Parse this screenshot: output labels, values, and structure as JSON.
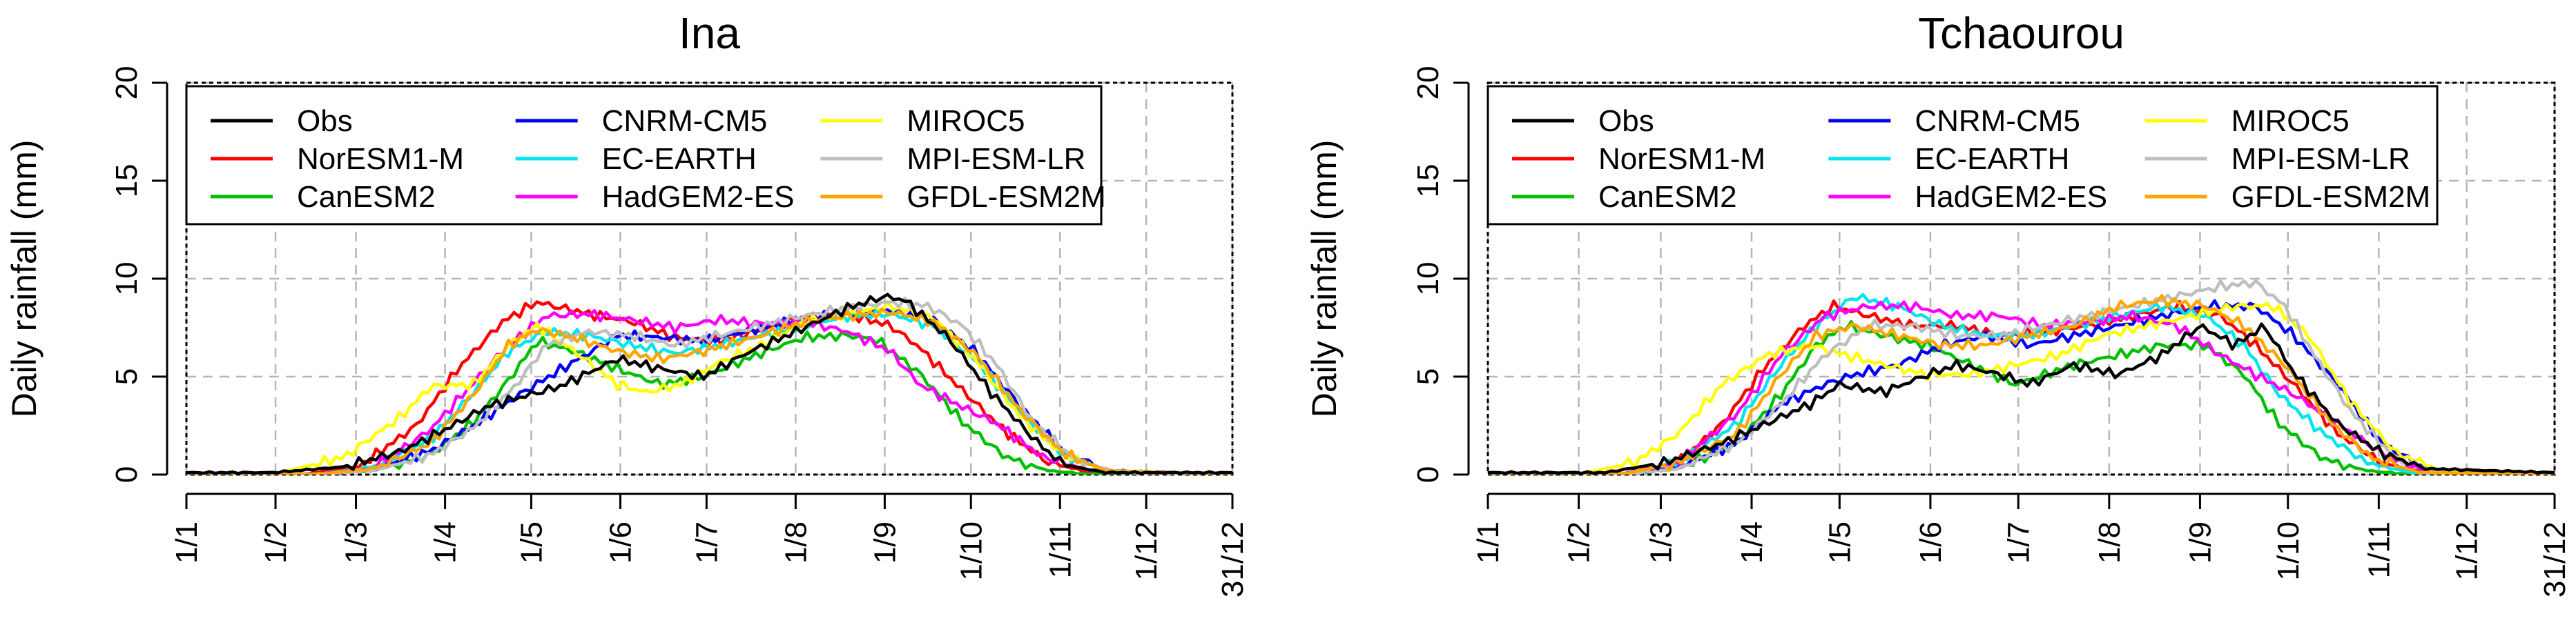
{
  "chart_data": [
    {
      "type": "line",
      "title": "Ina",
      "ylabel": "Daily rainfall (mm)",
      "xlabel": "",
      "ylim": [
        0,
        20
      ],
      "yticks": [
        0,
        5,
        10,
        15,
        20
      ],
      "xlim": [
        0,
        364
      ],
      "xtick_labels": [
        "1/1",
        "1/2",
        "1/3",
        "1/4",
        "1/5",
        "1/6",
        "1/7",
        "1/8",
        "1/9",
        "1/10",
        "1/11",
        "1/12",
        "31/12"
      ],
      "xtick_days": [
        0,
        31,
        59,
        90,
        120,
        151,
        181,
        212,
        243,
        273,
        304,
        334,
        364
      ],
      "grid": true,
      "legend_position": "top",
      "series": [
        {
          "name": "Obs",
          "color": "#000000",
          "x": [
            0,
            30,
            55,
            75,
            90,
            105,
            120,
            130,
            150,
            165,
            180,
            195,
            212,
            230,
            243,
            250,
            265,
            280,
            295,
            305,
            320,
            364
          ],
          "y": [
            0.1,
            0.1,
            0.4,
            1.2,
            2.3,
            3.5,
            4.1,
            4.5,
            5.9,
            5.4,
            5.0,
            6.2,
            7.3,
            8.5,
            9.1,
            8.9,
            7.0,
            4.2,
            1.8,
            0.5,
            0.1,
            0.1
          ]
        },
        {
          "name": "NorESM1-M",
          "color": "#ff0000",
          "x": [
            0,
            40,
            60,
            80,
            95,
            110,
            122,
            128,
            140,
            155,
            170,
            185,
            200,
            215,
            230,
            245,
            255,
            270,
            285,
            300,
            315,
            364
          ],
          "y": [
            0,
            0,
            0.4,
            2.5,
            5.5,
            7.8,
            8.8,
            8.6,
            8.2,
            7.8,
            7.0,
            6.8,
            7.4,
            8.0,
            8.2,
            7.6,
            6.5,
            4.3,
            2.2,
            0.6,
            0.1,
            0
          ]
        },
        {
          "name": "CanESM2",
          "color": "#00c000",
          "x": [
            0,
            45,
            65,
            85,
            100,
            112,
            122,
            135,
            150,
            165,
            180,
            200,
            215,
            230,
            240,
            255,
            270,
            285,
            300,
            315,
            364
          ],
          "y": [
            0,
            0,
            0.2,
            1.0,
            2.7,
            4.8,
            6.8,
            6.3,
            5.4,
            4.6,
            5.0,
            6.2,
            7.0,
            7.1,
            6.9,
            5.2,
            2.7,
            0.9,
            0.2,
            0,
            0
          ]
        },
        {
          "name": "CNRM-CM5",
          "color": "#0000ff",
          "x": [
            0,
            45,
            65,
            85,
            100,
            115,
            125,
            140,
            150,
            165,
            180,
            200,
            215,
            230,
            245,
            260,
            275,
            290,
            305,
            320,
            364
          ],
          "y": [
            0,
            0,
            0.3,
            1.2,
            2.5,
            4.0,
            4.9,
            6.2,
            7.1,
            7.0,
            6.8,
            7.5,
            8.0,
            8.2,
            8.4,
            7.9,
            6.2,
            3.5,
            1.2,
            0.2,
            0
          ]
        },
        {
          "name": "EC-EARTH",
          "color": "#00e5ee",
          "x": [
            0,
            45,
            65,
            85,
            100,
            112,
            125,
            140,
            155,
            170,
            185,
            200,
            215,
            230,
            245,
            260,
            275,
            290,
            305,
            320,
            364
          ],
          "y": [
            0,
            0,
            0.4,
            1.8,
            4.2,
            6.3,
            7.3,
            7.1,
            6.6,
            6.2,
            6.6,
            7.1,
            7.6,
            8.1,
            8.2,
            7.6,
            5.8,
            3.2,
            1.0,
            0.2,
            0
          ]
        },
        {
          "name": "HadGEM2-ES",
          "color": "#ff00ff",
          "x": [
            0,
            45,
            65,
            85,
            100,
            112,
            125,
            140,
            155,
            170,
            185,
            200,
            215,
            230,
            245,
            255,
            268,
            282,
            298,
            315,
            364
          ],
          "y": [
            0,
            0,
            0.3,
            2.3,
            4.7,
            6.6,
            8.1,
            8.2,
            7.9,
            7.5,
            7.9,
            7.7,
            7.8,
            7.3,
            6.3,
            4.6,
            3.6,
            2.6,
            0.9,
            0.2,
            0
          ]
        },
        {
          "name": "MIROC5",
          "color": "#ffff00",
          "x": [
            0,
            30,
            55,
            75,
            85,
            100,
            112,
            122,
            135,
            150,
            160,
            172,
            185,
            200,
            215,
            230,
            245,
            260,
            275,
            290,
            305,
            320,
            364
          ],
          "y": [
            0,
            0,
            0.9,
            3.0,
            4.5,
            4.6,
            6.6,
            7.6,
            6.3,
            4.6,
            4.2,
            4.6,
            5.7,
            6.6,
            7.8,
            8.2,
            8.6,
            8.0,
            5.8,
            3.0,
            1.0,
            0.2,
            0
          ]
        },
        {
          "name": "MPI-ESM-LR",
          "color": "#bebebe",
          "x": [
            0,
            45,
            65,
            85,
            100,
            115,
            125,
            140,
            155,
            170,
            185,
            200,
            215,
            230,
            245,
            258,
            270,
            282,
            295,
            310,
            325,
            364
          ],
          "y": [
            0,
            0,
            0.2,
            1.0,
            2.4,
            4.6,
            6.6,
            7.3,
            7.1,
            6.6,
            7.1,
            7.6,
            8.1,
            8.5,
            8.8,
            8.6,
            7.6,
            5.6,
            2.6,
            0.7,
            0.1,
            0
          ]
        },
        {
          "name": "GFDL-ESM2M",
          "color": "#ffa500",
          "x": [
            0,
            45,
            65,
            85,
            100,
            112,
            122,
            135,
            150,
            165,
            180,
            200,
            215,
            230,
            245,
            260,
            275,
            290,
            305,
            320,
            364
          ],
          "y": [
            0,
            0,
            0.3,
            1.6,
            4.1,
            6.6,
            7.4,
            7.0,
            6.3,
            5.9,
            6.3,
            7.1,
            7.8,
            8.1,
            8.3,
            7.8,
            6.1,
            3.3,
            1.1,
            0.2,
            0
          ]
        }
      ]
    },
    {
      "type": "line",
      "title": "Tchaourou",
      "ylabel": "Daily rainfall (mm)",
      "xlabel": "",
      "ylim": [
        0,
        20
      ],
      "yticks": [
        0,
        5,
        10,
        15,
        20
      ],
      "xlim": [
        0,
        364
      ],
      "xtick_labels": [
        "1/1",
        "1/2",
        "1/3",
        "1/4",
        "1/5",
        "1/6",
        "1/7",
        "1/8",
        "1/9",
        "1/10",
        "1/11",
        "1/12",
        "31/12"
      ],
      "xtick_days": [
        0,
        31,
        59,
        90,
        120,
        151,
        181,
        212,
        243,
        273,
        304,
        334,
        364
      ],
      "grid": true,
      "legend_position": "top",
      "series": [
        {
          "name": "Obs",
          "color": "#000000",
          "x": [
            0,
            40,
            60,
            80,
            95,
            110,
            120,
            135,
            150,
            160,
            175,
            185,
            200,
            215,
            230,
            243,
            255,
            265,
            275,
            290,
            305,
            320,
            364
          ],
          "y": [
            0.1,
            0.1,
            0.6,
            1.6,
            2.6,
            3.6,
            4.6,
            4.2,
            5.1,
            5.6,
            5.1,
            4.6,
            5.6,
            5.1,
            6.1,
            7.6,
            6.6,
            7.6,
            5.2,
            2.6,
            1.1,
            0.3,
            0.1
          ]
        },
        {
          "name": "NorESM1-M",
          "color": "#ff0000",
          "x": [
            0,
            45,
            65,
            80,
            95,
            108,
            118,
            130,
            145,
            160,
            175,
            190,
            205,
            220,
            235,
            250,
            262,
            275,
            290,
            305,
            320,
            364
          ],
          "y": [
            0,
            0,
            0.6,
            2.6,
            5.6,
            7.6,
            8.6,
            8.1,
            7.6,
            7.6,
            7.1,
            7.3,
            7.6,
            8.1,
            8.6,
            8.1,
            6.6,
            4.6,
            2.1,
            0.6,
            0.1,
            0
          ]
        },
        {
          "name": "CanESM2",
          "color": "#00c000",
          "x": [
            0,
            45,
            65,
            85,
            100,
            112,
            122,
            135,
            150,
            165,
            180,
            200,
            215,
            230,
            245,
            258,
            270,
            285,
            300,
            315,
            364
          ],
          "y": [
            0,
            0,
            0.3,
            1.6,
            4.1,
            6.6,
            7.6,
            7.1,
            6.6,
            5.6,
            4.6,
            5.6,
            6.1,
            6.6,
            6.6,
            5.1,
            2.6,
            0.8,
            0.2,
            0,
            0
          ]
        },
        {
          "name": "CNRM-CM5",
          "color": "#0000ff",
          "x": [
            0,
            45,
            65,
            85,
            100,
            115,
            125,
            140,
            155,
            170,
            185,
            200,
            215,
            230,
            245,
            262,
            275,
            290,
            305,
            320,
            364
          ],
          "y": [
            0,
            0,
            0.4,
            1.6,
            3.6,
            4.6,
            5.1,
            5.6,
            6.6,
            7.1,
            6.6,
            7.1,
            7.6,
            8.1,
            8.6,
            8.6,
            7.1,
            4.6,
            1.6,
            0.3,
            0
          ]
        },
        {
          "name": "EC-EARTH",
          "color": "#00e5ee",
          "x": [
            0,
            45,
            65,
            85,
            100,
            112,
            125,
            140,
            155,
            170,
            185,
            200,
            215,
            230,
            245,
            258,
            270,
            285,
            300,
            315,
            364
          ],
          "y": [
            0,
            0,
            0.6,
            2.6,
            5.6,
            7.6,
            9.1,
            8.6,
            7.6,
            7.1,
            7.1,
            7.6,
            8.1,
            8.6,
            8.1,
            6.6,
            4.1,
            2.1,
            0.6,
            0.1,
            0
          ]
        },
        {
          "name": "HadGEM2-ES",
          "color": "#ff00ff",
          "x": [
            0,
            45,
            65,
            85,
            100,
            115,
            130,
            145,
            160,
            175,
            190,
            205,
            220,
            235,
            250,
            262,
            275,
            290,
            305,
            320,
            364
          ],
          "y": [
            0,
            0,
            0.6,
            3.1,
            6.1,
            8.1,
            8.6,
            8.6,
            8.1,
            8.1,
            7.6,
            7.8,
            8.1,
            7.6,
            6.1,
            5.1,
            4.1,
            2.6,
            1.1,
            0.2,
            0
          ]
        },
        {
          "name": "MIROC5",
          "color": "#ffff00",
          "x": [
            0,
            30,
            50,
            65,
            80,
            95,
            110,
            122,
            135,
            150,
            165,
            180,
            195,
            210,
            225,
            240,
            255,
            268,
            280,
            295,
            310,
            325,
            364
          ],
          "y": [
            0,
            0,
            0.6,
            2.1,
            4.6,
            6.1,
            6.6,
            6.1,
            5.6,
            5.1,
            5.1,
            5.6,
            6.1,
            7.1,
            7.6,
            8.1,
            8.6,
            8.6,
            7.1,
            3.6,
            1.1,
            0.2,
            0
          ]
        },
        {
          "name": "MPI-ESM-LR",
          "color": "#bebebe",
          "x": [
            0,
            45,
            65,
            85,
            100,
            115,
            130,
            145,
            160,
            175,
            190,
            205,
            220,
            235,
            250,
            262,
            272,
            282,
            295,
            310,
            325,
            364
          ],
          "y": [
            0,
            0,
            0.3,
            1.6,
            3.6,
            6.1,
            7.6,
            7.6,
            7.1,
            7.1,
            7.6,
            8.1,
            8.6,
            9.1,
            9.6,
            9.8,
            8.6,
            6.1,
            3.1,
            0.8,
            0.1,
            0
          ]
        },
        {
          "name": "GFDL-ESM2M",
          "color": "#ffa500",
          "x": [
            0,
            45,
            65,
            85,
            100,
            112,
            125,
            140,
            155,
            170,
            185,
            200,
            215,
            230,
            245,
            258,
            272,
            288,
            302,
            318,
            364
          ],
          "y": [
            0,
            0,
            0.6,
            2.1,
            5.1,
            7.1,
            7.6,
            7.1,
            6.6,
            6.6,
            7.1,
            7.6,
            8.6,
            8.9,
            8.6,
            7.6,
            5.6,
            2.6,
            0.8,
            0.1,
            0
          ]
        }
      ]
    }
  ]
}
